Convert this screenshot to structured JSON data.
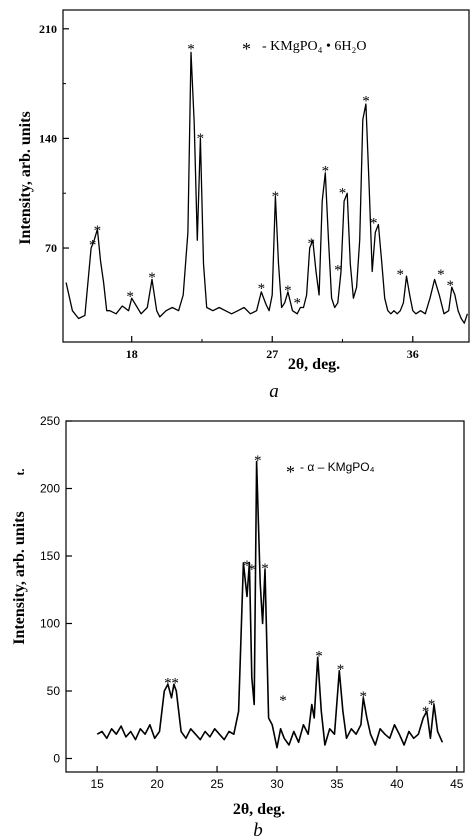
{
  "figure": {
    "panel_a_label": "a",
    "panel_b_label": "b"
  },
  "chart_data": [
    {
      "type": "line",
      "panel": "a",
      "xlabel": "2θ, deg.",
      "ylabel": "Intensity, arb. units",
      "legend": {
        "marker": "*",
        "text": "- KMgPO₄ • 6H₂O",
        "placement": "top-right"
      },
      "xlim": [
        13.6,
        39.6
      ],
      "ylim": [
        10,
        222
      ],
      "xticks": [
        18,
        27,
        36
      ],
      "yticks": [
        70,
        140,
        210
      ],
      "x": [
        13.8,
        14.2,
        14.6,
        15.0,
        15.4,
        15.6,
        15.8,
        16.0,
        16.2,
        16.4,
        16.6,
        17.0,
        17.4,
        17.8,
        18.0,
        18.3,
        18.6,
        19.0,
        19.3,
        19.6,
        19.8,
        20.2,
        20.6,
        21.0,
        21.3,
        21.6,
        21.8,
        22.0,
        22.2,
        22.4,
        22.6,
        22.8,
        23.2,
        23.6,
        24.0,
        24.4,
        24.8,
        25.2,
        25.6,
        26.0,
        26.3,
        26.6,
        26.8,
        27.0,
        27.2,
        27.4,
        27.6,
        27.8,
        28.0,
        28.3,
        28.6,
        28.8,
        29.0,
        29.2,
        29.4,
        29.6,
        29.8,
        30.0,
        30.2,
        30.4,
        30.6,
        30.8,
        31.0,
        31.2,
        31.4,
        31.6,
        31.8,
        32.0,
        32.2,
        32.4,
        32.6,
        32.8,
        33.0,
        33.2,
        33.4,
        33.6,
        33.8,
        34.0,
        34.2,
        34.4,
        34.6,
        34.8,
        35.0,
        35.2,
        35.4,
        35.6,
        35.8,
        36.0,
        36.2,
        36.5,
        36.8,
        37.1,
        37.4,
        37.7,
        38.0,
        38.3,
        38.5,
        38.7,
        38.9,
        39.1,
        39.3,
        39.5
      ],
      "y": [
        48,
        30,
        25,
        27,
        70,
        75,
        82,
        62,
        48,
        30,
        30,
        28,
        33,
        30,
        38,
        33,
        28,
        32,
        50,
        30,
        26,
        30,
        32,
        30,
        40,
        80,
        195,
        150,
        75,
        140,
        60,
        32,
        30,
        32,
        30,
        28,
        30,
        32,
        28,
        30,
        42,
        34,
        30,
        40,
        103,
        60,
        32,
        35,
        42,
        30,
        28,
        32,
        32,
        40,
        70,
        75,
        55,
        40,
        100,
        118,
        75,
        38,
        32,
        35,
        55,
        100,
        105,
        60,
        38,
        45,
        75,
        152,
        162,
        110,
        55,
        80,
        85,
        62,
        38,
        30,
        28,
        30,
        28,
        30,
        35,
        52,
        40,
        30,
        28,
        30,
        28,
        38,
        50,
        40,
        28,
        30,
        45,
        40,
        30,
        25,
        22,
        28
      ],
      "peak_markers": [
        {
          "x": 15.5,
          "y": 73
        },
        {
          "x": 15.8,
          "y": 82
        },
        {
          "x": 17.9,
          "y": 40
        },
        {
          "x": 19.3,
          "y": 52
        },
        {
          "x": 21.8,
          "y": 198
        },
        {
          "x": 22.4,
          "y": 141
        },
        {
          "x": 26.3,
          "y": 45
        },
        {
          "x": 27.2,
          "y": 104
        },
        {
          "x": 28.0,
          "y": 44
        },
        {
          "x": 28.6,
          "y": 36
        },
        {
          "x": 29.5,
          "y": 74
        },
        {
          "x": 30.4,
          "y": 120
        },
        {
          "x": 31.2,
          "y": 57
        },
        {
          "x": 31.5,
          "y": 106
        },
        {
          "x": 33.0,
          "y": 165
        },
        {
          "x": 33.5,
          "y": 87
        },
        {
          "x": 35.2,
          "y": 54
        },
        {
          "x": 37.8,
          "y": 54
        },
        {
          "x": 38.4,
          "y": 47
        }
      ]
    },
    {
      "type": "line",
      "panel": "b",
      "xlabel": "2θ, deg.",
      "ylabel": "Intensity, arb. units",
      "ylabel_suffix": "t.",
      "legend": {
        "marker": "*",
        "text": "- α – KMgPO₄",
        "placement": "top-right"
      },
      "xlim": [
        12.4,
        45.6
      ],
      "ylim": [
        -10,
        250
      ],
      "xticks": [
        15,
        20,
        25,
        30,
        35,
        40,
        45
      ],
      "yticks": [
        0,
        50,
        100,
        150,
        200,
        250
      ],
      "x": [
        15.0,
        15.4,
        15.8,
        16.2,
        16.6,
        17.0,
        17.4,
        17.8,
        18.2,
        18.6,
        19.0,
        19.4,
        19.8,
        20.2,
        20.6,
        20.9,
        21.2,
        21.4,
        21.6,
        22.0,
        22.4,
        22.8,
        23.2,
        23.6,
        24.0,
        24.4,
        24.8,
        25.2,
        25.6,
        26.0,
        26.4,
        26.8,
        27.2,
        27.5,
        27.7,
        27.9,
        28.1,
        28.3,
        28.6,
        28.8,
        29.0,
        29.3,
        29.6,
        30.0,
        30.3,
        30.6,
        31.0,
        31.4,
        31.8,
        32.2,
        32.6,
        32.9,
        33.1,
        33.4,
        33.7,
        34.0,
        34.4,
        34.8,
        35.2,
        35.5,
        35.8,
        36.2,
        36.6,
        37.0,
        37.2,
        37.5,
        37.8,
        38.2,
        38.6,
        39.0,
        39.4,
        39.8,
        40.2,
        40.6,
        41.0,
        41.4,
        41.8,
        42.2,
        42.5,
        42.8,
        43.1,
        43.4,
        43.8
      ],
      "y": [
        18,
        20,
        15,
        22,
        18,
        24,
        16,
        20,
        14,
        22,
        18,
        25,
        15,
        20,
        50,
        55,
        45,
        55,
        50,
        20,
        15,
        22,
        18,
        14,
        20,
        16,
        22,
        18,
        14,
        20,
        18,
        35,
        145,
        120,
        145,
        60,
        40,
        220,
        130,
        100,
        140,
        30,
        25,
        8,
        22,
        15,
        10,
        20,
        12,
        25,
        18,
        40,
        30,
        75,
        35,
        10,
        22,
        18,
        65,
        35,
        15,
        22,
        18,
        25,
        45,
        30,
        18,
        10,
        22,
        18,
        15,
        25,
        18,
        10,
        20,
        15,
        18,
        30,
        35,
        15,
        40,
        20,
        12
      ],
      "peak_markers": [
        {
          "x": 20.9,
          "y": 57
        },
        {
          "x": 21.5,
          "y": 57
        },
        {
          "x": 27.5,
          "y": 144
        },
        {
          "x": 27.9,
          "y": 141
        },
        {
          "x": 28.4,
          "y": 222
        },
        {
          "x": 29.0,
          "y": 142
        },
        {
          "x": 30.5,
          "y": 44
        },
        {
          "x": 33.5,
          "y": 77
        },
        {
          "x": 35.3,
          "y": 67
        },
        {
          "x": 37.2,
          "y": 47
        },
        {
          "x": 42.4,
          "y": 36
        },
        {
          "x": 42.9,
          "y": 41
        }
      ]
    }
  ]
}
